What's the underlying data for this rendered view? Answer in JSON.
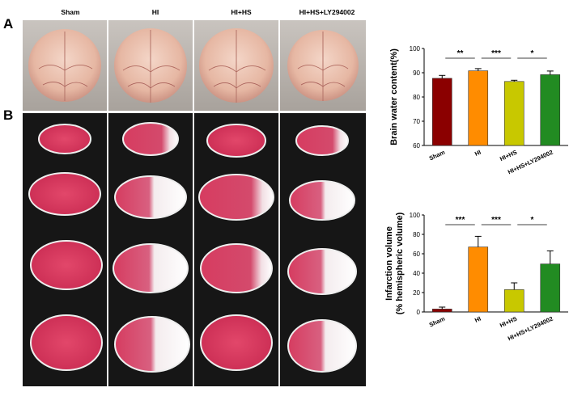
{
  "figure": {
    "panel_a": "A",
    "panel_b": "B",
    "group_labels": [
      "Sham",
      "HI",
      "HI+HS",
      "HI+HS+LY294002"
    ]
  },
  "chart_data": [
    {
      "type": "bar",
      "categories": [
        "Sham",
        "HI",
        "HI+HS",
        "HI+HS+LY294002"
      ],
      "values": [
        87.7,
        90.8,
        86.4,
        89.2
      ],
      "errors": [
        1.2,
        0.9,
        0.5,
        1.5
      ],
      "colors": [
        "#8b0000",
        "#ff8c00",
        "#c8c800",
        "#228b22"
      ],
      "ylabel": "Brain water content(%)",
      "ylim": [
        60,
        100
      ],
      "yticks": [
        60,
        70,
        80,
        90,
        100
      ],
      "significance": [
        {
          "from": 0,
          "to": 1,
          "label": "**"
        },
        {
          "from": 1,
          "to": 2,
          "label": "***"
        },
        {
          "from": 2,
          "to": 3,
          "label": "*"
        }
      ]
    },
    {
      "type": "bar",
      "categories": [
        "Sham",
        "HI",
        "HI+HS",
        "HI+HS+LY294002"
      ],
      "values": [
        3,
        67,
        23,
        49.5
      ],
      "errors": [
        2,
        11,
        7,
        13.5
      ],
      "colors": [
        "#8b0000",
        "#ff8c00",
        "#c8c800",
        "#228b22"
      ],
      "ylabel": "Infarction volume\n(% hemispheric volume)",
      "ylim": [
        0,
        100
      ],
      "yticks": [
        0,
        20,
        40,
        60,
        80,
        100
      ],
      "significance": [
        {
          "from": 0,
          "to": 1,
          "label": "***"
        },
        {
          "from": 1,
          "to": 2,
          "label": "***"
        },
        {
          "from": 2,
          "to": 3,
          "label": "*"
        }
      ]
    }
  ]
}
